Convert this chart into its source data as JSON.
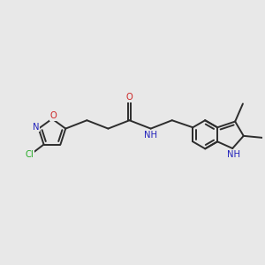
{
  "background_color": "#e8e8e8",
  "bond_color": "#2d2d2d",
  "figsize": [
    3.0,
    3.0
  ],
  "dpi": 100,
  "atom_colors": {
    "Cl": "#22aa22",
    "N": "#2222bb",
    "O": "#cc2222",
    "C": "#2d2d2d"
  },
  "xlim": [
    -0.5,
    10.5
  ],
  "ylim": [
    -1.0,
    5.0
  ]
}
